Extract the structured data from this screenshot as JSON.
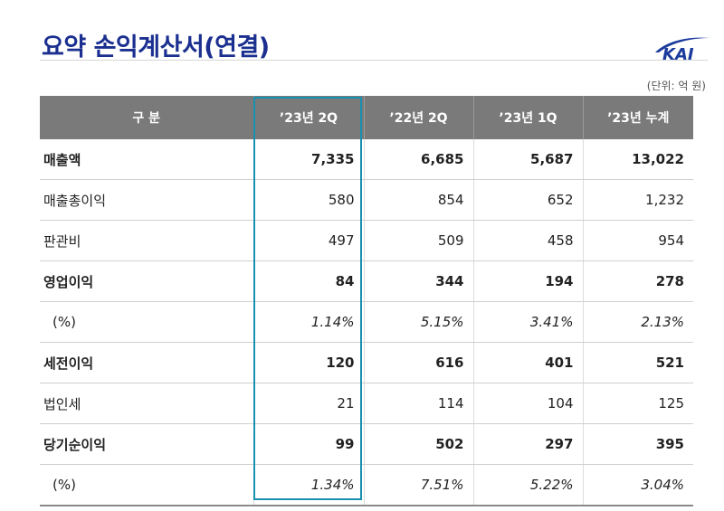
{
  "page": {
    "title": "요약 손익계산서(연결)",
    "unit": "(단위: 억 원)",
    "logo_text": "KAI"
  },
  "table": {
    "headers": [
      "구 분",
      "’23년 2Q",
      "’22년 2Q",
      "’23년 1Q",
      "’23년 누계"
    ],
    "rows": [
      {
        "label": "매출액",
        "style": "bold",
        "values": [
          "7,335",
          "6,685",
          "5,687",
          "13,022"
        ]
      },
      {
        "label": "매출총이익",
        "style": "normal",
        "values": [
          "580",
          "854",
          "652",
          "1,232"
        ]
      },
      {
        "label": "판관비",
        "style": "normal",
        "values": [
          "497",
          "509",
          "458",
          "954"
        ]
      },
      {
        "label": "영업이익",
        "style": "bold",
        "values": [
          "84",
          "344",
          "194",
          "278"
        ]
      },
      {
        "label": "(%)",
        "style": "italic",
        "values": [
          "1.14%",
          "5.15%",
          "3.41%",
          "2.13%"
        ]
      },
      {
        "label": "세전이익",
        "style": "bold",
        "values": [
          "120",
          "616",
          "401",
          "521"
        ]
      },
      {
        "label": "법인세",
        "style": "normal",
        "values": [
          "21",
          "114",
          "104",
          "125"
        ]
      },
      {
        "label": "당기순이익",
        "style": "bold",
        "values": [
          "99",
          "502",
          "297",
          "395"
        ]
      },
      {
        "label": "(%)",
        "style": "italic",
        "values": [
          "1.34%",
          "7.51%",
          "5.22%",
          "3.04%"
        ]
      }
    ]
  },
  "colors": {
    "title": "#1a2f8f",
    "header_bg": "#7a7a7a",
    "highlight": "#1b8fb0",
    "logo": "#1a3a9c"
  }
}
